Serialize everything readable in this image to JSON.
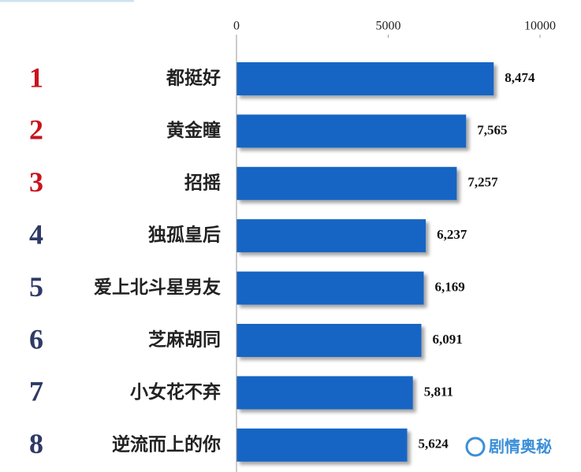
{
  "chart_data": {
    "type": "bar",
    "orientation": "horizontal",
    "ranks": [
      1,
      2,
      3,
      4,
      5,
      6,
      7,
      8
    ],
    "rank_colors": [
      "#c8141e",
      "#c8141e",
      "#c8141e",
      "#2e3a66",
      "#2e3a66",
      "#2e3a66",
      "#2e3a66",
      "#2e3a66"
    ],
    "categories": [
      "都挺好",
      "黄金瞳",
      "招摇",
      "独孤皇后",
      "爱上北斗星男友",
      "芝麻胡同",
      "小女花不弃",
      "逆流而上的你"
    ],
    "values": [
      8474,
      7565,
      7257,
      6237,
      6169,
      6091,
      5811,
      5624
    ],
    "value_labels": [
      "8,474",
      "7,565",
      "7,257",
      "6,237",
      "6,169",
      "6,091",
      "5,811",
      "5,624"
    ],
    "color": "#1565c4",
    "xlim": [
      0,
      10000
    ],
    "xticks": [
      0,
      5000,
      10000
    ],
    "watermark": "剧情奥秘"
  }
}
